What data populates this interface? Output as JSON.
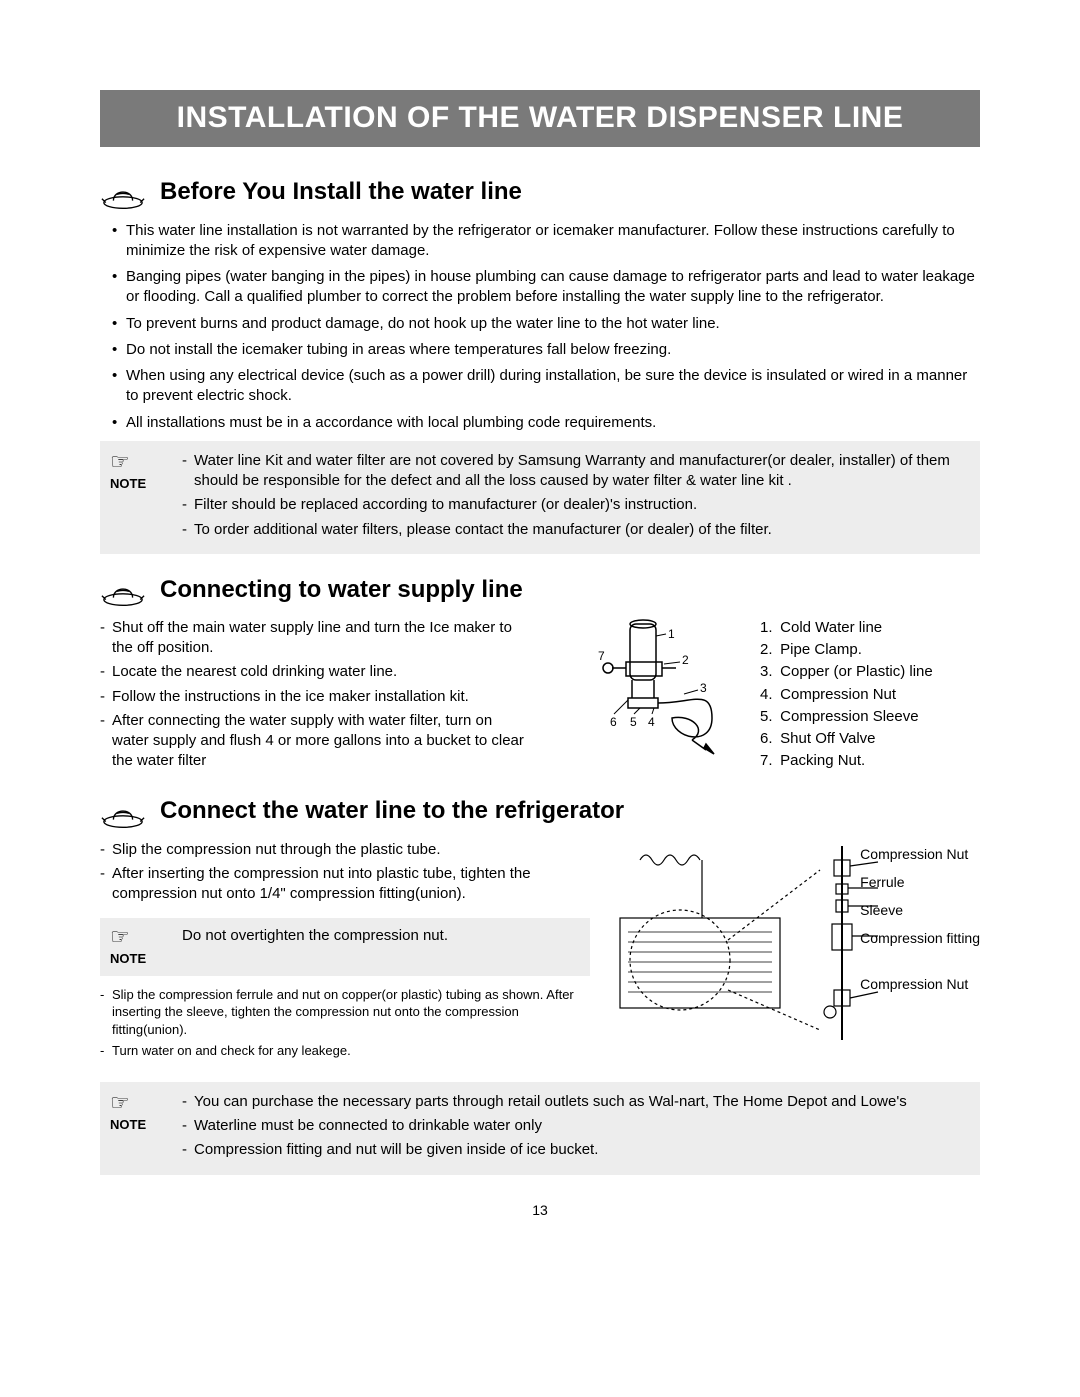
{
  "banner": "INSTALLATION OF THE WATER DISPENSER LINE",
  "pageNumber": "13",
  "s1": {
    "heading": "Before You Install the water line",
    "bullets": [
      "This water line installation is not warranted by the refrigerator or icemaker manufacturer. Follow these instructions carefully to minimize the risk of expensive water damage.",
      "Banging pipes (water banging in the pipes) in house plumbing can cause damage to refrigerator parts and lead to water leakage or flooding. Call a qualified plumber to correct the problem before installing the water supply line to the refrigerator.",
      "To prevent burns and product damage, do not hook up the water line to the hot water line.",
      "Do not install the icemaker tubing in areas where temperatures fall below freezing.",
      "When using any electrical device (such as a power drill) during installation, be sure the device is insulated or wired in a manner to prevent electric shock.",
      "All installations must be in a accordance with local plumbing code requirements."
    ],
    "note": {
      "label": "NOTE",
      "items": [
        "Water line Kit and water filter are not covered by Samsung Warranty and manufacturer(or dealer, installer) of them should be responsible for the defect and all the loss caused by water filter & water line kit .",
        "Filter should be replaced according to manufacturer (or dealer)'s instruction.",
        "To order additional water filters, please contact the manufacturer (or dealer) of the filter."
      ]
    }
  },
  "s2": {
    "heading": "Connecting to water supply line",
    "steps": [
      "Shut off the main water supply line and turn the Ice maker to the off position.",
      "Locate the nearest cold drinking water line.",
      "Follow the instructions in the ice maker installation kit.",
      "After connecting the water supply with water filter, turn on water supply and flush 4 or more gallons into a bucket to clear the water filter"
    ],
    "legend": [
      {
        "n": "1.",
        "t": "Cold Water line"
      },
      {
        "n": "2.",
        "t": "Pipe Clamp."
      },
      {
        "n": "3.",
        "t": "Copper (or Plastic) line"
      },
      {
        "n": "4.",
        "t": "Compression Nut"
      },
      {
        "n": "5.",
        "t": "Compression Sleeve"
      },
      {
        "n": "6.",
        "t": "Shut Off Valve"
      },
      {
        "n": "7.",
        "t": "Packing Nut."
      }
    ],
    "callouts": [
      "1",
      "2",
      "3",
      "4",
      "5",
      "6",
      "7"
    ]
  },
  "s3": {
    "heading": "Connect the water line to the refrigerator",
    "steps": [
      "Slip the compression nut through the plastic tube.",
      "After inserting the compression nut into plastic tube, tighten the compression nut onto 1/4\" compression fitting(union)."
    ],
    "inlineNote": {
      "label": "NOTE",
      "text": "Do not overtighten the compression nut."
    },
    "fine": [
      "Slip the compression ferrule and nut on copper(or plastic) tubing as shown. After inserting the sleeve, tighten the compression nut onto the compression fitting(union).",
      "Turn water on and check for any leakege."
    ],
    "labels": [
      "Compression Nut",
      "Ferrule",
      "Sleeve",
      "Compression fitting",
      "Compression Nut"
    ],
    "bottomNote": {
      "label": "NOTE",
      "items": [
        "You can purchase the necessary parts through retail outlets such as Wal-nart, The Home Depot and Lowe's",
        "Waterline must be connected to drinkable water only",
        "Compression fitting and nut will be given inside of ice bucket."
      ]
    }
  }
}
